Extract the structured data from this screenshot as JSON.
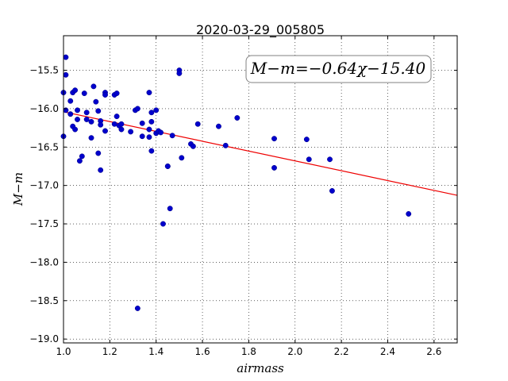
{
  "chart_data": {
    "type": "scatter",
    "title": "2020-03-29_005805",
    "xlabel": "airmass",
    "ylabel": "M−m",
    "xlim": [
      1.0,
      2.7
    ],
    "ylim": [
      -19.05,
      -15.05
    ],
    "xticks": [
      1.0,
      1.2,
      1.4,
      1.6,
      1.8,
      2.0,
      2.2,
      2.4,
      2.6
    ],
    "xtick_labels": [
      "1.0",
      "1.2",
      "1.4",
      "1.6",
      "1.8",
      "2.0",
      "2.2",
      "2.4",
      "2.6"
    ],
    "yticks": [
      -15.5,
      -16.0,
      -16.5,
      -17.0,
      -17.5,
      -18.0,
      -18.5,
      -19.0
    ],
    "ytick_labels": [
      "−15.5",
      "−16.0",
      "−16.5",
      "−17.0",
      "−17.5",
      "−18.0",
      "−18.5",
      "−19.0"
    ],
    "grid": true,
    "annotation": "M−m=−0.64χ−15.40",
    "colors": {
      "points": "#0000cc",
      "fit": "#ee0000"
    },
    "fit_line": {
      "slope": -0.64,
      "intercept": -15.4
    },
    "points": [
      {
        "x": 1.0,
        "y": -15.79
      },
      {
        "x": 1.0,
        "y": -16.36
      },
      {
        "x": 1.01,
        "y": -15.33
      },
      {
        "x": 1.01,
        "y": -15.56
      },
      {
        "x": 1.01,
        "y": -16.02
      },
      {
        "x": 1.03,
        "y": -15.9
      },
      {
        "x": 1.03,
        "y": -16.07
      },
      {
        "x": 1.04,
        "y": -15.79
      },
      {
        "x": 1.04,
        "y": -16.23
      },
      {
        "x": 1.05,
        "y": -15.76
      },
      {
        "x": 1.05,
        "y": -16.27
      },
      {
        "x": 1.06,
        "y": -16.14
      },
      {
        "x": 1.06,
        "y": -16.02
      },
      {
        "x": 1.07,
        "y": -16.68
      },
      {
        "x": 1.08,
        "y": -16.62
      },
      {
        "x": 1.09,
        "y": -15.8
      },
      {
        "x": 1.1,
        "y": -16.05
      },
      {
        "x": 1.1,
        "y": -16.14
      },
      {
        "x": 1.12,
        "y": -16.17
      },
      {
        "x": 1.12,
        "y": -16.38
      },
      {
        "x": 1.13,
        "y": -15.71
      },
      {
        "x": 1.14,
        "y": -15.91
      },
      {
        "x": 1.15,
        "y": -16.03
      },
      {
        "x": 1.15,
        "y": -16.58
      },
      {
        "x": 1.16,
        "y": -16.16
      },
      {
        "x": 1.16,
        "y": -16.21
      },
      {
        "x": 1.16,
        "y": -16.8
      },
      {
        "x": 1.18,
        "y": -15.79
      },
      {
        "x": 1.18,
        "y": -15.82
      },
      {
        "x": 1.18,
        "y": -16.29
      },
      {
        "x": 1.22,
        "y": -16.2
      },
      {
        "x": 1.22,
        "y": -15.82
      },
      {
        "x": 1.23,
        "y": -15.8
      },
      {
        "x": 1.23,
        "y": -16.1
      },
      {
        "x": 1.24,
        "y": -16.22
      },
      {
        "x": 1.25,
        "y": -16.2
      },
      {
        "x": 1.25,
        "y": -16.27
      },
      {
        "x": 1.29,
        "y": -16.3
      },
      {
        "x": 1.31,
        "y": -16.02
      },
      {
        "x": 1.32,
        "y": -16.0
      },
      {
        "x": 1.32,
        "y": -18.6
      },
      {
        "x": 1.34,
        "y": -16.36
      },
      {
        "x": 1.34,
        "y": -16.19
      },
      {
        "x": 1.37,
        "y": -15.79
      },
      {
        "x": 1.37,
        "y": -16.27
      },
      {
        "x": 1.37,
        "y": -16.37
      },
      {
        "x": 1.38,
        "y": -16.05
      },
      {
        "x": 1.38,
        "y": -16.17
      },
      {
        "x": 1.38,
        "y": -16.55
      },
      {
        "x": 1.4,
        "y": -16.02
      },
      {
        "x": 1.4,
        "y": -16.32
      },
      {
        "x": 1.41,
        "y": -16.29
      },
      {
        "x": 1.42,
        "y": -16.31
      },
      {
        "x": 1.43,
        "y": -17.5
      },
      {
        "x": 1.45,
        "y": -16.75
      },
      {
        "x": 1.45,
        "y": -16.75
      },
      {
        "x": 1.46,
        "y": -17.3
      },
      {
        "x": 1.47,
        "y": -16.35
      },
      {
        "x": 1.5,
        "y": -15.5
      },
      {
        "x": 1.5,
        "y": -15.54
      },
      {
        "x": 1.51,
        "y": -16.64
      },
      {
        "x": 1.55,
        "y": -16.46
      },
      {
        "x": 1.56,
        "y": -16.49
      },
      {
        "x": 1.58,
        "y": -16.2
      },
      {
        "x": 1.67,
        "y": -16.23
      },
      {
        "x": 1.7,
        "y": -16.48
      },
      {
        "x": 1.75,
        "y": -16.12
      },
      {
        "x": 1.91,
        "y": -16.39
      },
      {
        "x": 1.91,
        "y": -16.77
      },
      {
        "x": 2.05,
        "y": -16.4
      },
      {
        "x": 2.06,
        "y": -16.66
      },
      {
        "x": 2.15,
        "y": -16.66
      },
      {
        "x": 2.16,
        "y": -17.07
      },
      {
        "x": 2.49,
        "y": -17.37
      }
    ]
  }
}
